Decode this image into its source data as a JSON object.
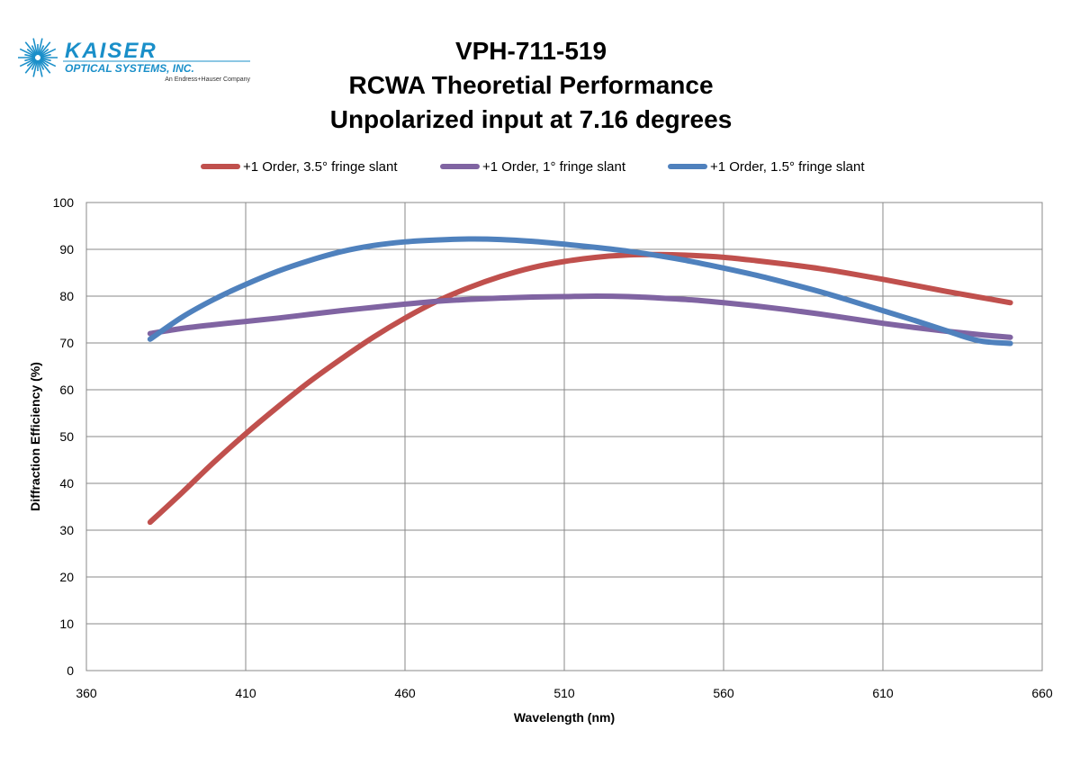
{
  "logo": {
    "name": "KAISER",
    "subname": "OPTICAL SYSTEMS, INC.",
    "tagline": "An Endress+Hauser Company",
    "color": "#1a8fc9"
  },
  "chart_data": {
    "type": "line",
    "title": [
      "VPH-711-519",
      "RCWA Theoretial Performance",
      "Unpolarized input at 7.16 degrees"
    ],
    "xlabel": "Wavelength (nm)",
    "ylabel": "Diffraction Efficiency (%)",
    "xlim": [
      360,
      660
    ],
    "ylim": [
      0,
      100
    ],
    "xticks": [
      360,
      410,
      460,
      510,
      560,
      610,
      660
    ],
    "yticks": [
      0,
      10,
      20,
      30,
      40,
      50,
      60,
      70,
      80,
      90,
      100
    ],
    "grid": true,
    "legend_position": "top",
    "x": [
      380,
      390,
      400,
      410,
      420,
      430,
      440,
      450,
      460,
      470,
      480,
      490,
      500,
      510,
      520,
      530,
      540,
      550,
      560,
      570,
      580,
      590,
      600,
      610,
      620,
      630,
      640,
      650
    ],
    "series": [
      {
        "name": "+1 Order, 3.5° fringe slant",
        "color": "#c0504d",
        "values": [
          31.7,
          38.0,
          44.5,
          50.6,
          56.3,
          61.7,
          66.6,
          71.2,
          75.3,
          78.9,
          81.8,
          84.2,
          86.1,
          87.4,
          88.3,
          88.8,
          88.9,
          88.7,
          88.3,
          87.6,
          86.8,
          85.9,
          84.8,
          83.6,
          82.3,
          81.0,
          79.8,
          78.6
        ]
      },
      {
        "name": "+1 Order, 1° fringe slant",
        "color": "#8064a2",
        "values": [
          72.0,
          73.1,
          73.9,
          74.6,
          75.3,
          76.1,
          76.9,
          77.6,
          78.3,
          78.9,
          79.3,
          79.6,
          79.8,
          79.9,
          80.0,
          79.9,
          79.6,
          79.2,
          78.6,
          77.9,
          77.1,
          76.2,
          75.2,
          74.2,
          73.3,
          72.5,
          71.8,
          71.2
        ]
      },
      {
        "name": "+1 Order, 1.5° fringe slant",
        "color": "#4f81bd",
        "values": [
          70.8,
          75.5,
          79.3,
          82.5,
          85.3,
          87.6,
          89.5,
          90.8,
          91.6,
          92.0,
          92.2,
          92.1,
          91.7,
          91.1,
          90.4,
          89.6,
          88.6,
          87.4,
          86.0,
          84.5,
          82.8,
          81.0,
          79.0,
          76.9,
          74.8,
          72.6,
          70.5,
          69.9
        ]
      }
    ]
  }
}
